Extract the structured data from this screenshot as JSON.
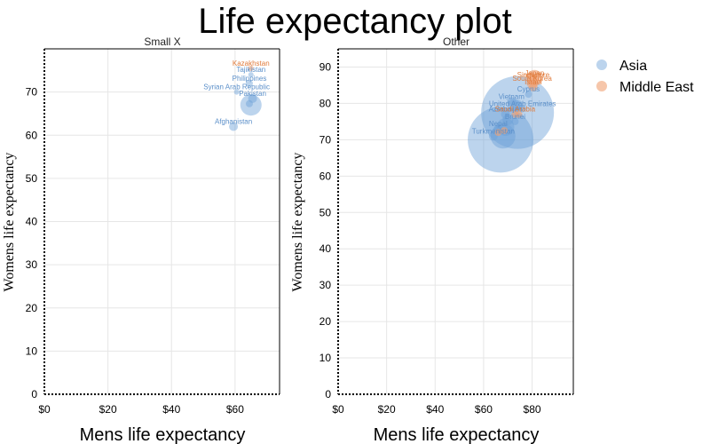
{
  "chart_data": {
    "type": "scatter",
    "title": "Life expectancy plot",
    "xlabel": "Mens life expectancy",
    "ylabel": "Womens life expectancy",
    "colors": {
      "Asia": "#6a9fd8",
      "Middle East": "#f0a072"
    },
    "legend": {
      "placement": "right",
      "entries": [
        {
          "name": "Asia",
          "color": "#6a9fd8"
        },
        {
          "name": "Middle East",
          "color": "#f0a072"
        }
      ]
    },
    "panels": [
      {
        "facet": "Small X",
        "xlim": [
          0,
          74
        ],
        "ylim": [
          0,
          80
        ],
        "xticks": [
          0,
          20,
          40,
          60
        ],
        "xtick_labels": [
          "$0",
          "$20",
          "$40",
          "$60"
        ],
        "yticks": [
          0,
          10,
          20,
          30,
          40,
          50,
          60,
          70
        ],
        "points": [
          {
            "label": "Kazakhstan",
            "group": "Middle East",
            "x": 65,
            "y": 75.5,
            "size": 3
          },
          {
            "label": "Tajikistan",
            "group": "Asia",
            "x": 65,
            "y": 74,
            "size": 3
          },
          {
            "label": "Philippines",
            "group": "Asia",
            "x": 64.5,
            "y": 72,
            "size": 4
          },
          {
            "label": "Syrian Arab Republic",
            "group": "Asia",
            "x": 60.5,
            "y": 70,
            "size": 3
          },
          {
            "label": "Pakistan",
            "group": "Asia",
            "x": 65.5,
            "y": 68.5,
            "size": 5
          },
          {
            "label": "",
            "group": "Asia",
            "x": 65,
            "y": 67,
            "size": 12
          },
          {
            "label": "",
            "group": "Asia",
            "x": 64.5,
            "y": 67.3,
            "size": 4
          },
          {
            "label": "Afghanistan",
            "group": "Asia",
            "x": 59.5,
            "y": 62,
            "size": 5
          }
        ]
      },
      {
        "facet": "Other",
        "xlim": [
          0,
          97
        ],
        "ylim": [
          0,
          95
        ],
        "xticks": [
          0,
          20,
          40,
          60,
          80
        ],
        "xtick_labels": [
          "$0",
          "$20",
          "$40",
          "$60",
          "$80"
        ],
        "yticks": [
          0,
          10,
          20,
          30,
          40,
          50,
          60,
          70,
          80,
          90
        ],
        "points": [
          {
            "label": "",
            "group": "Asia",
            "x": 67,
            "y": 70,
            "size": 37
          },
          {
            "label": "",
            "group": "Asia",
            "x": 74,
            "y": 77.5,
            "size": 41
          },
          {
            "label": "",
            "group": "Asia",
            "x": 68,
            "y": 71,
            "size": 14
          },
          {
            "label": "",
            "group": "Asia",
            "x": 69,
            "y": 73.5,
            "size": 10
          },
          {
            "label": "Turkmenistan",
            "group": "Asia",
            "x": 64,
            "y": 71,
            "size": 5
          },
          {
            "label": "Nepal",
            "group": "Asia",
            "x": 66,
            "y": 73,
            "size": 5
          },
          {
            "label": "",
            "group": "Middle East",
            "x": 66,
            "y": 72,
            "size": 4
          },
          {
            "label": "",
            "group": "Middle East",
            "x": 68.5,
            "y": 72.5,
            "size": 4
          },
          {
            "label": "Azerbaijan",
            "group": "Asia",
            "x": 69,
            "y": 77,
            "size": 5
          },
          {
            "label": "",
            "group": "Asia",
            "x": 70,
            "y": 75.5,
            "size": 6
          },
          {
            "label": "Saudi Arabia",
            "group": "Middle East",
            "x": 73,
            "y": 77,
            "size": 4
          },
          {
            "label": "",
            "group": "Middle East",
            "x": 74.5,
            "y": 77,
            "size": 4
          },
          {
            "label": "Brunei",
            "group": "Asia",
            "x": 73,
            "y": 75,
            "size": 4
          },
          {
            "label": "Vietnam",
            "group": "Asia",
            "x": 71.5,
            "y": 80.5,
            "size": 5
          },
          {
            "label": "",
            "group": "Asia",
            "x": 72.5,
            "y": 79.5,
            "size": 7
          },
          {
            "label": "",
            "group": "Asia",
            "x": 74,
            "y": 79.5,
            "size": 6
          },
          {
            "label": "United Arab Emirates",
            "group": "Asia",
            "x": 76,
            "y": 78.5,
            "size": 4
          },
          {
            "label": "Cyprus",
            "group": "Asia",
            "x": 78.5,
            "y": 82.5,
            "size": 4
          },
          {
            "label": "Israel",
            "group": "Middle East",
            "x": 80.5,
            "y": 84.5,
            "size": 5
          },
          {
            "label": "South Korea",
            "group": "Middle East",
            "x": 80,
            "y": 85.5,
            "size": 6
          },
          {
            "label": "Singapore",
            "group": "Middle East",
            "x": 80.5,
            "y": 86.5,
            "size": 5
          },
          {
            "label": "Japan",
            "group": "Middle East",
            "x": 81,
            "y": 87,
            "size": 9
          }
        ]
      }
    ]
  }
}
